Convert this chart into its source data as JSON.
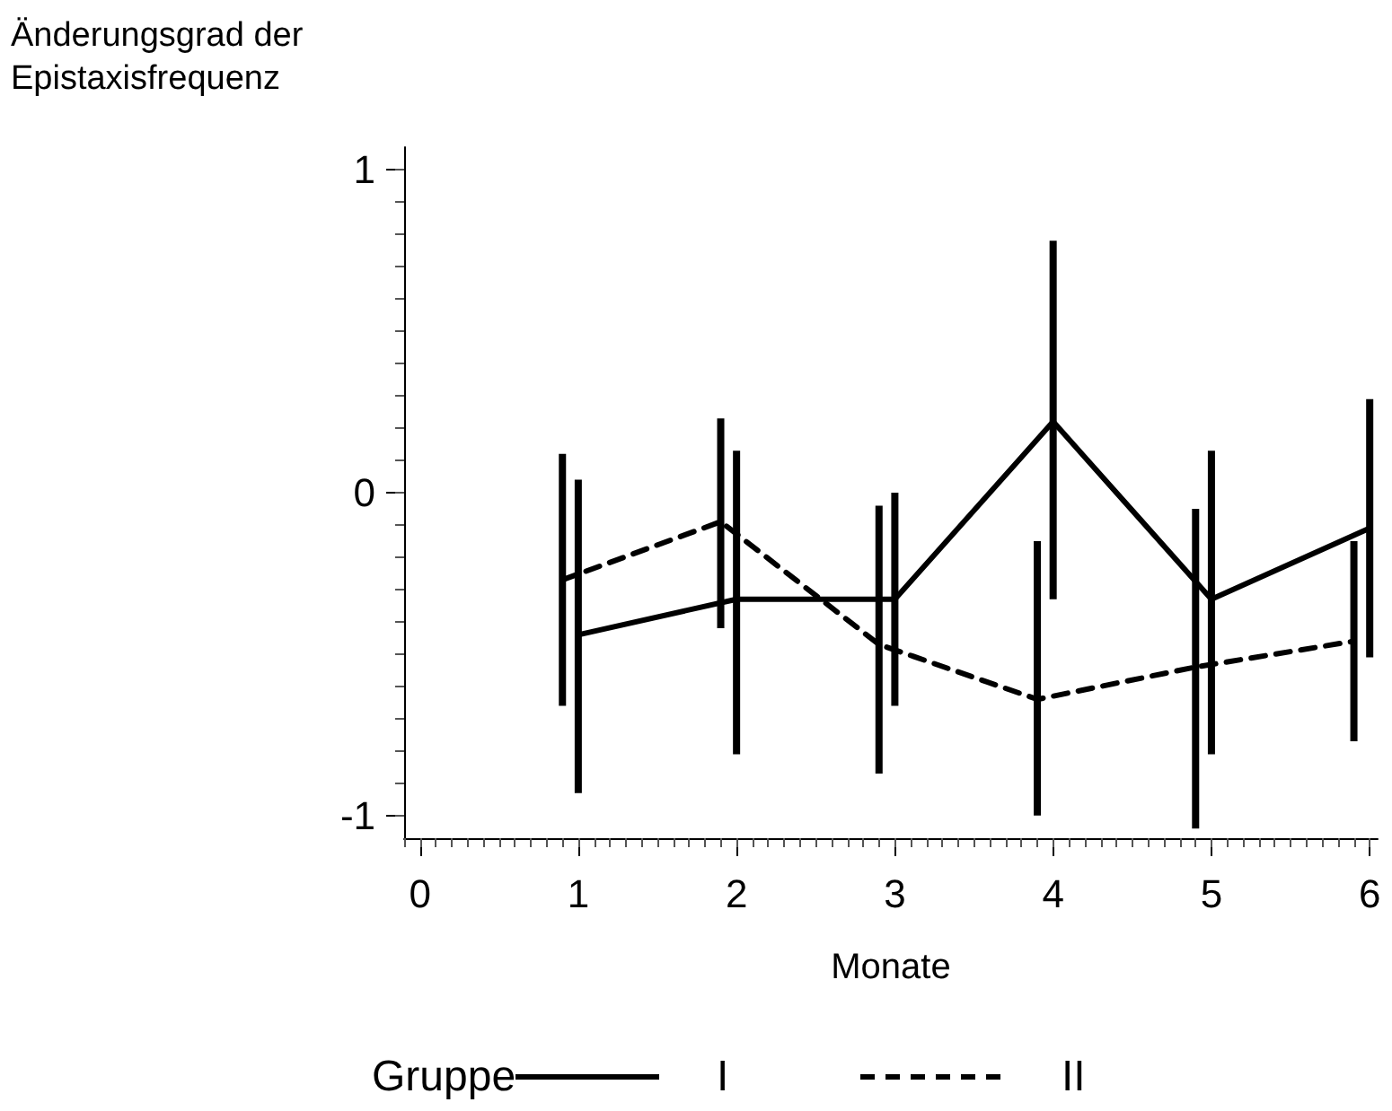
{
  "chart_data": {
    "type": "line",
    "ylabel": "Änderungsgrad der\nEpistaxisfrequenz",
    "xlabel": "Monate",
    "legend_title": "Gruppe",
    "legend": "bottom",
    "marker": "none",
    "grid": false,
    "xlim": [
      -0.1,
      6.05
    ],
    "xticks": [
      0,
      1,
      2,
      3,
      4,
      5,
      6
    ],
    "ylim": [
      -1.07,
      1.07
    ],
    "yticks": [
      -1,
      0,
      1
    ],
    "series": [
      {
        "name": "I",
        "color": "#000000",
        "line_style": "solid",
        "x": [
          1,
          2,
          3,
          4,
          5,
          6
        ],
        "values": [
          -0.44,
          -0.33,
          -0.33,
          0.22,
          -0.33,
          -0.11
        ],
        "errors": [
          [
            -0.93,
            0.04
          ],
          [
            -0.81,
            0.13
          ],
          [
            -0.66,
            0.0
          ],
          [
            -0.33,
            0.78
          ],
          [
            -0.81,
            0.13
          ],
          [
            -0.51,
            0.29
          ]
        ]
      },
      {
        "name": "II",
        "color": "#000000",
        "line_style": "dashed",
        "x": [
          0.9,
          1.9,
          2.9,
          3.9,
          4.9,
          5.9
        ],
        "values": [
          -0.27,
          -0.09,
          -0.47,
          -0.64,
          -0.54,
          -0.46
        ],
        "errors": [
          [
            -0.66,
            0.12
          ],
          [
            -0.42,
            0.23
          ],
          [
            -0.87,
            -0.04
          ],
          [
            -1.0,
            -0.15
          ],
          [
            -1.04,
            -0.05
          ],
          [
            -0.77,
            -0.15
          ]
        ]
      }
    ]
  }
}
